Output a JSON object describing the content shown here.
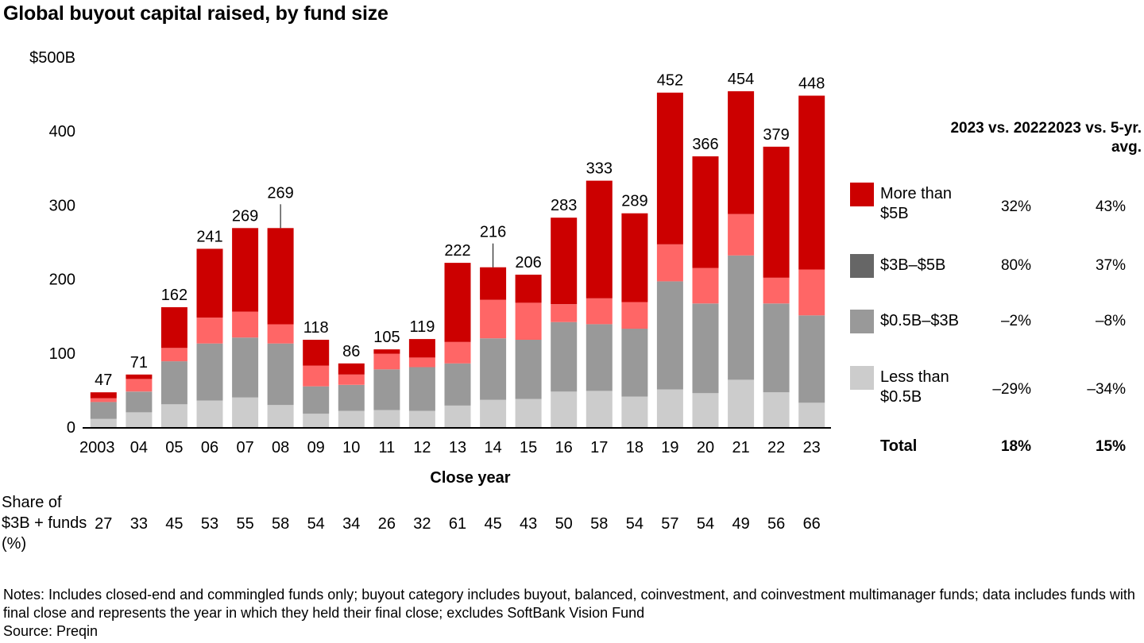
{
  "title": "Global buyout capital raised, by fund size",
  "chart_data": {
    "type": "bar",
    "stacked": true,
    "title": "Global buyout capital raised, by fund size",
    "xlabel": "Close year",
    "ylabel": "",
    "ylim": [
      0,
      500
    ],
    "y_ticks": [
      "0",
      "100",
      "200",
      "300",
      "400",
      "$500B"
    ],
    "y_tick_values": [
      0,
      100,
      200,
      300,
      400,
      500
    ],
    "categories": [
      "2003",
      "04",
      "05",
      "06",
      "07",
      "08",
      "09",
      "10",
      "11",
      "12",
      "13",
      "14",
      "15",
      "16",
      "17",
      "18",
      "19",
      "20",
      "21",
      "22",
      "23"
    ],
    "totals": [
      47,
      71,
      162,
      241,
      269,
      269,
      118,
      86,
      105,
      119,
      222,
      216,
      206,
      283,
      333,
      289,
      452,
      366,
      454,
      379,
      448
    ],
    "total_labels": [
      "47",
      "71",
      "162",
      "241",
      "269",
      "269",
      "118",
      "86",
      "105",
      "119",
      "222",
      "216",
      "206",
      "283",
      "333",
      "289",
      "452",
      "366",
      "454",
      "379",
      "448"
    ],
    "series": [
      {
        "name": "Less than $0.5B",
        "color": "#cccccc",
        "values": [
          11,
          20,
          31,
          36,
          40,
          30,
          18,
          22,
          23,
          22,
          29,
          37,
          38,
          48,
          49,
          41,
          51,
          46,
          64,
          47,
          33
        ]
      },
      {
        "name": "$0.5B–$3B",
        "color": "#999999",
        "values": [
          23,
          28,
          58,
          77,
          81,
          83,
          37,
          35,
          55,
          59,
          57,
          83,
          80,
          94,
          90,
          92,
          146,
          121,
          168,
          120,
          118
        ]
      },
      {
        "name": "$3B–$5B",
        "color": "#ff6666",
        "values": [
          5,
          17,
          18,
          35,
          35,
          26,
          28,
          14,
          21,
          13,
          29,
          52,
          50,
          24,
          35,
          36,
          50,
          48,
          56,
          35,
          62
        ]
      },
      {
        "name": "More than $5B",
        "color": "#cc0000",
        "values": [
          8,
          6,
          55,
          93,
          113,
          130,
          35,
          15,
          6,
          25,
          107,
          44,
          38,
          117,
          159,
          120,
          205,
          151,
          166,
          177,
          235
        ]
      }
    ],
    "callout_years": [
      "08",
      "14"
    ],
    "grid": false,
    "legend_position": "right"
  },
  "comparison": {
    "col1_header": "2023 vs. 2022",
    "col2_header": "2023 vs. 5-yr. avg.",
    "rows": [
      {
        "label": "More than $5B",
        "color": "#cc0000",
        "v1": "32%",
        "v2": "43%"
      },
      {
        "label": "$3B–$5B",
        "color": "#666666",
        "v1": "80%",
        "v2": "37%"
      },
      {
        "label": "$0.5B–$3B",
        "color": "#999999",
        "v1": "–2%",
        "v2": "–8%"
      },
      {
        "label": "Less than $0.5B",
        "color": "#cccccc",
        "v1": "–29%",
        "v2": "–34%"
      }
    ],
    "total": {
      "label": "Total",
      "v1": "18%",
      "v2": "15%"
    }
  },
  "share": {
    "label": "Share of $3B + funds (%)",
    "values": [
      "27",
      "33",
      "45",
      "53",
      "55",
      "58",
      "54",
      "34",
      "26",
      "32",
      "61",
      "45",
      "43",
      "50",
      "58",
      "54",
      "57",
      "54",
      "49",
      "56",
      "66"
    ]
  },
  "notes": "Notes: Includes closed-end and commingled funds only; buyout category includes buyout, balanced, coinvestment, and coinvestment multimanager funds; data includes funds with final close and represents the year in which they held their final close; excludes SoftBank Vision Fund",
  "source": "Source: Preqin"
}
